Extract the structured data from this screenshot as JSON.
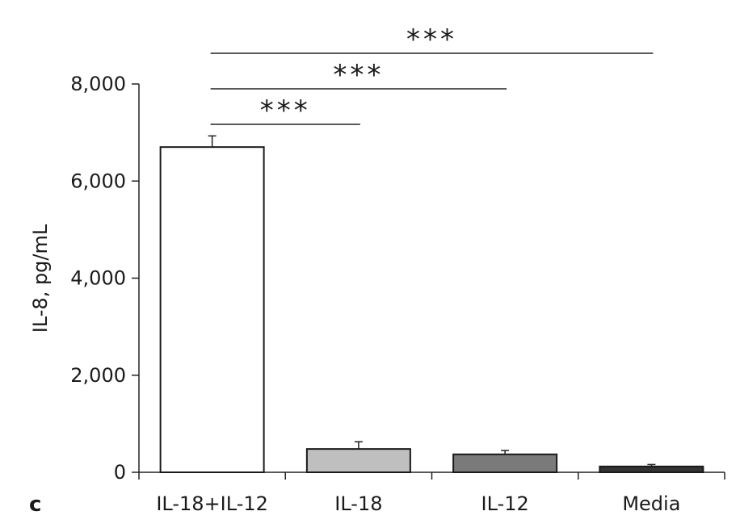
{
  "panel_label": "c",
  "chart_data": {
    "type": "bar",
    "title": "",
    "xlabel": "",
    "ylabel": "IL-8, pg/mL",
    "ylim": [
      0,
      8000
    ],
    "yticks": [
      0,
      2000,
      4000,
      6000,
      8000
    ],
    "ytick_labels": [
      "0",
      "2,000",
      "4,000",
      "6,000",
      "8,000"
    ],
    "categories": [
      "IL-18+IL-12",
      "IL-18",
      "IL-12",
      "Media"
    ],
    "values": [
      6700,
      480,
      370,
      120
    ],
    "errors": [
      230,
      150,
      80,
      40
    ],
    "bar_colors": [
      "#ffffff",
      "#bfbfbf",
      "#7a7a7a",
      "#333333"
    ],
    "grid": false,
    "significance": [
      {
        "from": "IL-18+IL-12",
        "to": "IL-18",
        "label": "***"
      },
      {
        "from": "IL-18+IL-12",
        "to": "IL-12",
        "label": "***"
      },
      {
        "from": "IL-18+IL-12",
        "to": "Media",
        "label": "***"
      }
    ]
  }
}
